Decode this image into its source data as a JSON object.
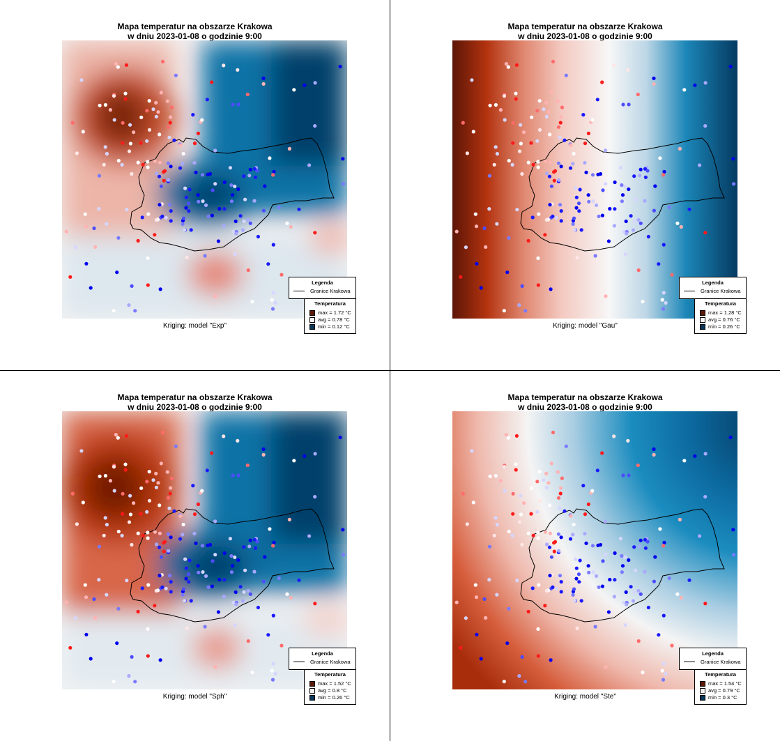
{
  "title_line1": "Mapa temperatur na obszarze Krakowa",
  "title_line2": "w dniu 2023-01-08 o godzinie 9:00",
  "legend": {
    "title": "Legenda",
    "boundary_label": "Granice Krakowa",
    "temp_title": "Temperatura",
    "unit": "°C"
  },
  "colors": {
    "max": "#5c1a06",
    "avg": "#f5f5f5",
    "min": "#06365a"
  },
  "panels": [
    {
      "id": "exp",
      "caption": "Kriging: model \"Exp\"",
      "max": "max =  1.72 °C",
      "avg": "avg =  0.78 °C",
      "min": "min =  0.12 °C"
    },
    {
      "id": "gau",
      "caption": "Kriging: model \"Gau\"",
      "max": "max =  1.28 °C",
      "avg": "avg =  0.76 °C",
      "min": "min =  0.26 °C"
    },
    {
      "id": "sph",
      "caption": "Kriging: model \"Sph\"",
      "max": "max =  1.52 °C",
      "avg": "avg =  0.8 °C",
      "min": "min =  0.26 °C"
    },
    {
      "id": "ste",
      "caption": "Kriging: model \"Ste\"",
      "max": "max =  1.54 °C",
      "avg": "avg =  0.79 °C",
      "min": "min =  0.3 °C"
    }
  ]
}
